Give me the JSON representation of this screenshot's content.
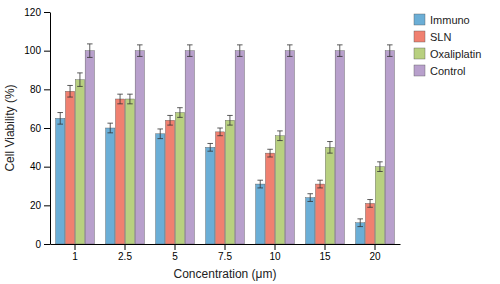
{
  "chart_data": {
    "type": "bar",
    "categories": [
      "1",
      "2.5",
      "5",
      "7.5",
      "10",
      "15",
      "20"
    ],
    "series": [
      {
        "name": "Immuno",
        "color": "#6baed6",
        "values": [
          65,
          60,
          57,
          50,
          31,
          24,
          11
        ],
        "errors": [
          3.0,
          2.5,
          2.5,
          2.0,
          2.0,
          2.0,
          2.0
        ]
      },
      {
        "name": "SLN",
        "color": "#f08070",
        "values": [
          79,
          75,
          64,
          58,
          47,
          31,
          21
        ],
        "errors": [
          3.0,
          2.5,
          2.5,
          2.0,
          2.0,
          2.0,
          2.0
        ]
      },
      {
        "name": "Oxaliplatin",
        "color": "#b8d080",
        "values": [
          85,
          75,
          68,
          64,
          56,
          50,
          40
        ],
        "errors": [
          3.5,
          2.5,
          2.5,
          2.5,
          2.5,
          3.0,
          2.5
        ]
      },
      {
        "name": "Control",
        "color": "#b8a0cc",
        "values": [
          100,
          100,
          100,
          100,
          100,
          100,
          100
        ],
        "errors": [
          3.5,
          3.0,
          3.0,
          3.0,
          3.0,
          3.0,
          3.0
        ]
      }
    ],
    "xlabel": "Concentration (μm)",
    "ylabel": "Cell Viability (%)",
    "ylim": [
      0,
      120
    ],
    "yticks": [
      0,
      20,
      40,
      60,
      80,
      100,
      120
    ],
    "grid": false,
    "legend": "upper right"
  }
}
